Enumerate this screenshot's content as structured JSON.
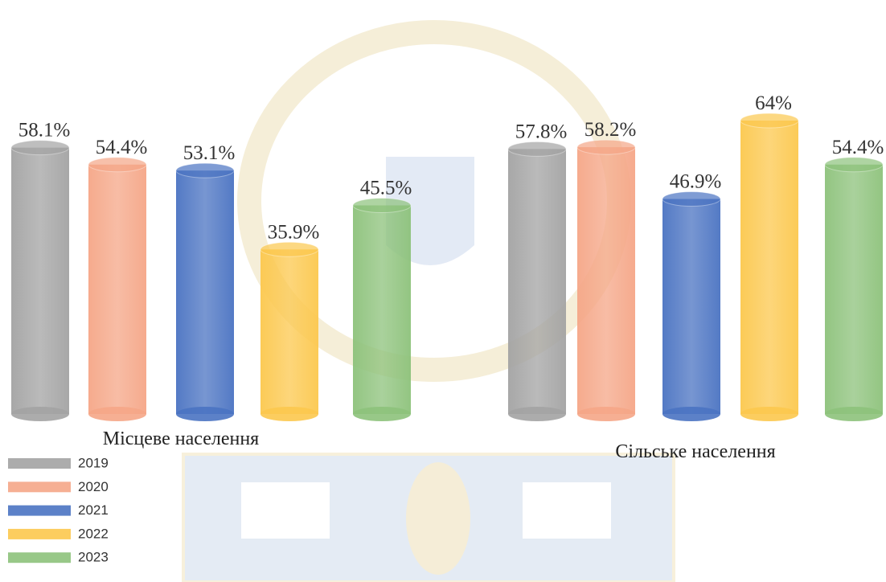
{
  "chart_data": {
    "type": "bar",
    "categories": [
      "Місцеве населення",
      "Сільське населення"
    ],
    "series": [
      {
        "name": "2019",
        "color": "#a3a3a3",
        "values": [
          58.1,
          57.8
        ],
        "value_labels": [
          "58.1%",
          "57.8%"
        ]
      },
      {
        "name": "2020",
        "color": "#f5a687",
        "values": [
          54.4,
          58.2
        ],
        "value_labels": [
          "54.4%",
          "58.2%"
        ]
      },
      {
        "name": "2021",
        "color": "#4a73c2",
        "values": [
          53.1,
          46.9
        ],
        "value_labels": [
          "53.1%",
          "46.9%"
        ]
      },
      {
        "name": "2022",
        "color": "#fcc84e",
        "values": [
          35.9,
          64
        ],
        "value_labels": [
          "35.9%",
          "64%"
        ]
      },
      {
        "name": "2023",
        "color": "#8dc27b",
        "values": [
          45.5,
          54.4
        ],
        "value_labels": [
          "45.5%",
          "54.4%"
        ]
      }
    ],
    "legend": "bottom-left"
  }
}
